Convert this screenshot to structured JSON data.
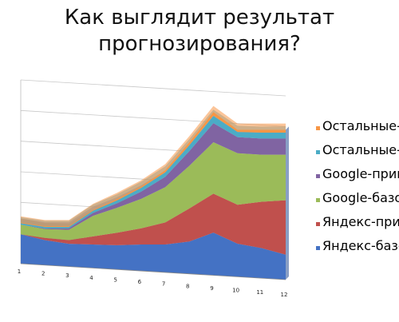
{
  "title_lines": [
    "Как выглядит результат",
    "прогнозирования?"
  ],
  "chart_data": {
    "type": "area",
    "stacked": true,
    "perspective": "3d",
    "x": [
      "1",
      "2",
      "3",
      "4",
      "5",
      "6",
      "7",
      "8",
      "9",
      "10",
      "11",
      "12"
    ],
    "series": [
      {
        "name": "Яндекс-базовый",
        "color": "#4472C4",
        "values": [
          40,
          34,
          31,
          32,
          33,
          36,
          38,
          44,
          58,
          45,
          41,
          34
        ]
      },
      {
        "name": "Яндекс-привлечённый",
        "color": "#C0504D",
        "values": [
          0,
          3,
          5,
          11,
          17,
          22,
          30,
          45,
          53,
          53,
          63,
          74
        ]
      },
      {
        "name": "Google-базовый",
        "color": "#9BBB59",
        "values": [
          13,
          12,
          14,
          28,
          34,
          40,
          48,
          58,
          70,
          70,
          64,
          62
        ]
      },
      {
        "name": "Google-привлечённый",
        "color": "#8064A2",
        "values": [
          0,
          1,
          2,
          4,
          6,
          10,
          14,
          20,
          26,
          22,
          22,
          22
        ]
      },
      {
        "name": "Остальные-базовый",
        "color": "#4BACC6",
        "values": [
          2,
          2,
          2,
          3,
          4,
          5,
          6,
          8,
          10,
          7,
          8,
          8
        ]
      },
      {
        "name": "Остальные-привлечённый",
        "color": "#F79646",
        "values": [
          1,
          1,
          1,
          1,
          2,
          2,
          3,
          4,
          5,
          3,
          4,
          4
        ]
      }
    ],
    "ylim": [
      0,
      250
    ],
    "grid": true,
    "legend_position": "right",
    "legend_order": "reverse"
  }
}
